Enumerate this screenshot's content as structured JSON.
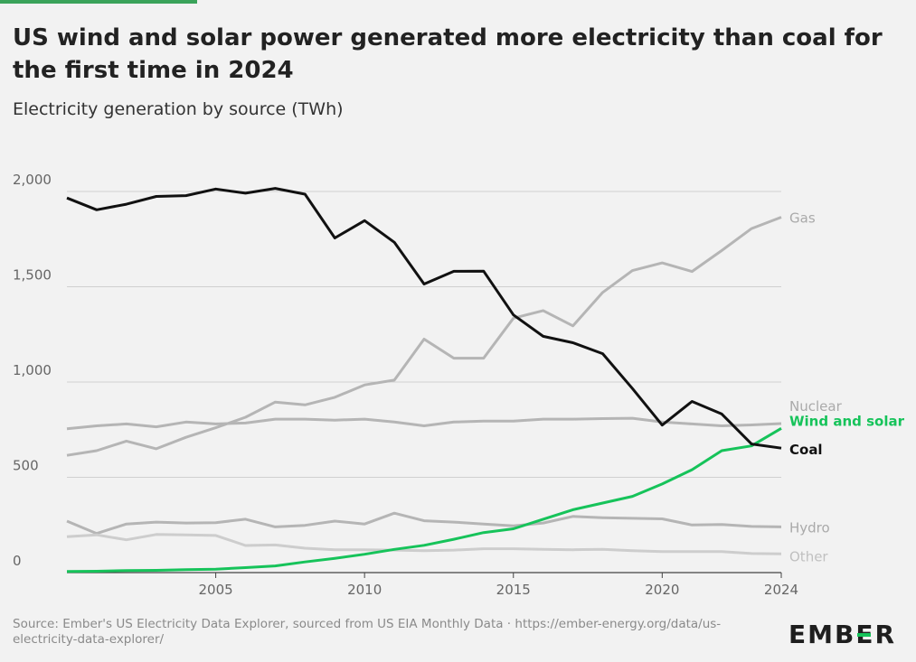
{
  "header": {
    "title": "US wind and solar power generated more electricity than coal for the first time in 2024",
    "subtitle": "Electricity generation by source (TWh)"
  },
  "footer": {
    "source": "Source: Ember's US Electricity Data Explorer, sourced from US EIA Monthly Data · https://ember-energy.org/data/us-electricity-data-explorer/",
    "logo": "EMBER"
  },
  "colors": {
    "coal": "#111111",
    "wind_solar": "#16c35a",
    "grey_series": "#b5b5b5",
    "other_series": "#cdcdcd",
    "grid": "#d0d0d0",
    "axis_text": "#666666"
  },
  "chart_data": {
    "type": "line",
    "title": "US wind and solar power generated more electricity than coal for the first time in 2024",
    "subtitle": "Electricity generation by source (TWh)",
    "xlim": [
      2000,
      2024
    ],
    "ylim": [
      0,
      2000
    ],
    "x_ticks": [
      "2005",
      "2010",
      "2015",
      "2020",
      "2024"
    ],
    "x_tick_values": [
      2005,
      2010,
      2015,
      2020,
      2024
    ],
    "y_ticks": [
      "0",
      "500",
      "1,000",
      "1,500",
      "2,000"
    ],
    "y_tick_values": [
      0,
      500,
      1000,
      1500,
      2000
    ],
    "grid": true,
    "x": [
      2000,
      2001,
      2002,
      2003,
      2004,
      2005,
      2006,
      2007,
      2008,
      2009,
      2010,
      2011,
      2012,
      2013,
      2014,
      2015,
      2016,
      2017,
      2018,
      2019,
      2020,
      2021,
      2022,
      2023,
      2024
    ],
    "series": [
      {
        "name": "Gas",
        "key": "gas",
        "values": [
          615,
          640,
          690,
          650,
          710,
          760,
          815,
          895,
          880,
          920,
          985,
          1010,
          1225,
          1125,
          1125,
          1335,
          1375,
          1295,
          1470,
          1585,
          1625,
          1580,
          1690,
          1805,
          1865
        ]
      },
      {
        "name": "Nuclear",
        "key": "nuclear",
        "values": [
          755,
          770,
          780,
          765,
          790,
          780,
          785,
          805,
          805,
          800,
          805,
          790,
          770,
          790,
          795,
          795,
          805,
          805,
          808,
          810,
          790,
          780,
          770,
          775,
          782
        ]
      },
      {
        "name": "Hydro",
        "key": "hydro",
        "values": [
          270,
          205,
          255,
          265,
          260,
          262,
          280,
          240,
          248,
          270,
          255,
          312,
          272,
          265,
          255,
          245,
          260,
          295,
          288,
          285,
          282,
          250,
          252,
          242,
          240
        ]
      },
      {
        "name": "Other",
        "key": "other",
        "values": [
          188,
          198,
          172,
          200,
          198,
          195,
          142,
          145,
          128,
          120,
          120,
          118,
          115,
          118,
          125,
          125,
          122,
          120,
          122,
          115,
          110,
          110,
          110,
          100,
          98
        ]
      },
      {
        "name": "Wind and solar",
        "key": "wind_solar",
        "values": [
          6,
          7,
          11,
          12,
          15,
          18,
          26,
          35,
          56,
          75,
          96,
          122,
          143,
          175,
          210,
          230,
          280,
          330,
          365,
          400,
          465,
          540,
          640,
          665,
          757
        ]
      },
      {
        "name": "Coal",
        "key": "coal",
        "values": [
          1966,
          1904,
          1933,
          1974,
          1978,
          2013,
          1991,
          2016,
          1986,
          1756,
          1847,
          1733,
          1514,
          1581,
          1582,
          1352,
          1240,
          1206,
          1149,
          966,
          774,
          898,
          832,
          675,
          653
        ]
      }
    ]
  }
}
